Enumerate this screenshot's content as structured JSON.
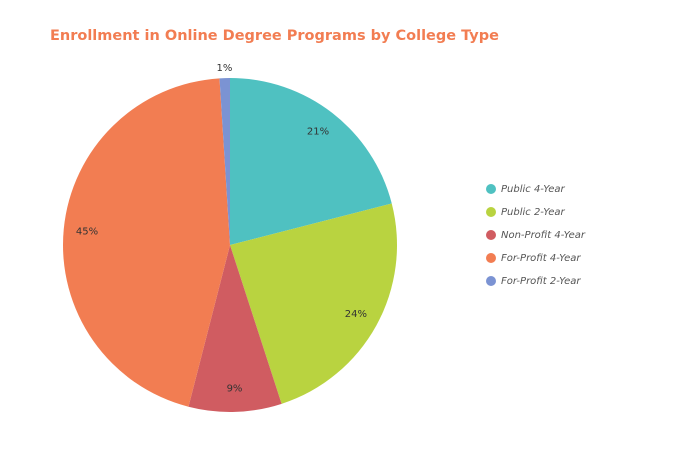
{
  "chart_data": {
    "type": "pie",
    "title": "Enrollment in Online Degree Programs by College Type",
    "categories": [
      "Public 4-Year",
      "Public 2-Year",
      "Non-Profit 4-Year",
      "For-Profit 4-Year",
      "For-Profit 2-Year"
    ],
    "values": [
      21,
      24,
      9,
      45,
      1
    ],
    "value_labels": [
      "21%",
      "24%",
      "9%",
      "45%",
      "1%"
    ],
    "colors": [
      "#4fc1c1",
      "#b9d340",
      "#d05c61",
      "#f27d52",
      "#7b93d3"
    ],
    "legend": "right"
  }
}
